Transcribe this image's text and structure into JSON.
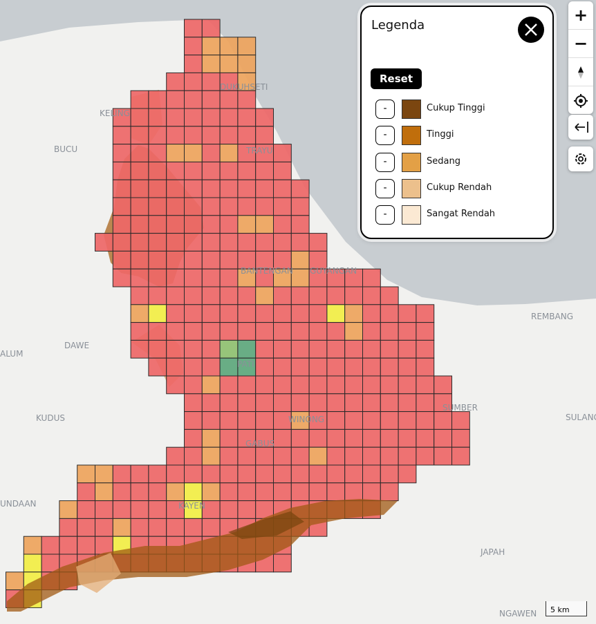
{
  "legend": {
    "title": "Legenda",
    "reset": "Reset",
    "items": [
      {
        "toggle": "-",
        "label": "Cukup Tinggi",
        "color": "#7b4610"
      },
      {
        "toggle": "-",
        "label": "Tinggi",
        "color": "#c06e0c"
      },
      {
        "toggle": "-",
        "label": "Sedang",
        "color": "#e3a046"
      },
      {
        "toggle": "-",
        "label": "Cukup Rendah",
        "color": "#ecc08c"
      },
      {
        "toggle": "-",
        "label": "Sangat Rendah",
        "color": "#fbe9d3"
      }
    ]
  },
  "controls": {
    "zoom_in": "+",
    "zoom_out": "−"
  },
  "scale": "5 km",
  "places": [
    "BUCU",
    "KELING",
    "DUKUHSETI",
    "TRAYU",
    "BANTENGAN",
    "GUYANGAN",
    "DAWE",
    "ALUM",
    "KUDUS",
    "PATI",
    "WINONG",
    "GABUS",
    "KAYEN",
    "SUMBER",
    "SULANG",
    "REMBANG",
    "JAPAH",
    "NGAWEN",
    "UNDAAN"
  ]
}
